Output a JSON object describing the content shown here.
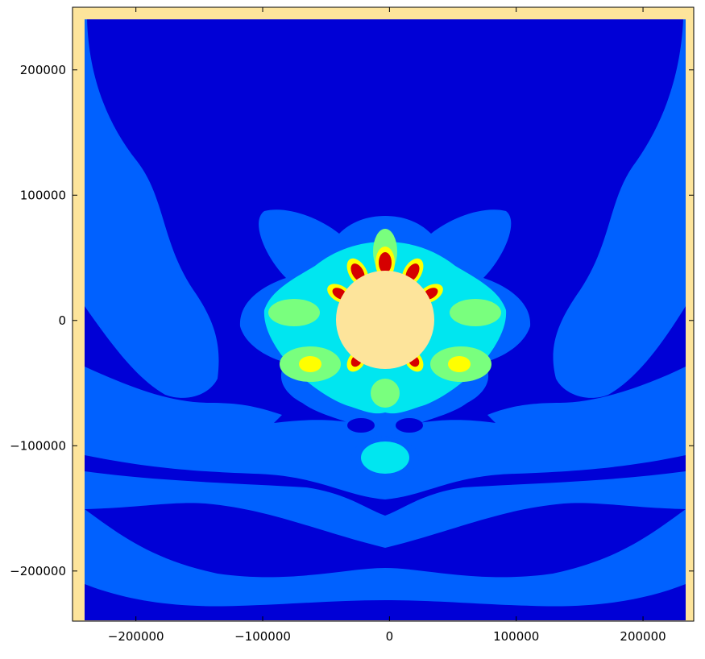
{
  "chart_data": {
    "type": "heatmap",
    "subtype": "filled-contour",
    "title": "",
    "xlabel": "",
    "ylabel": "",
    "xlim": [
      -250000,
      240000
    ],
    "ylim": [
      -240000,
      250000
    ],
    "data_extent": [
      -240000,
      240000,
      -240000,
      240000
    ],
    "grid": false,
    "legend": "none",
    "x_ticks": [
      -200000,
      -100000,
      0,
      100000,
      200000
    ],
    "x_tick_labels": [
      "−200000",
      "−100000",
      "0",
      "100000",
      "200000"
    ],
    "y_ticks": [
      200000,
      100000,
      0,
      -100000,
      -200000
    ],
    "y_tick_labels": [
      "200000",
      "100000",
      "0",
      "−100000",
      "−200000"
    ],
    "obstacle": {
      "shape": "circle",
      "center": [
        0,
        0
      ],
      "radius": 38000
    },
    "colors": {
      "background_fill": "#fde49b",
      "levels": [
        "#0000d6",
        "#0061ff",
        "#00e6f0",
        "#79ff7e",
        "#ffff00",
        "#ff8a00",
        "#d60000"
      ]
    }
  }
}
